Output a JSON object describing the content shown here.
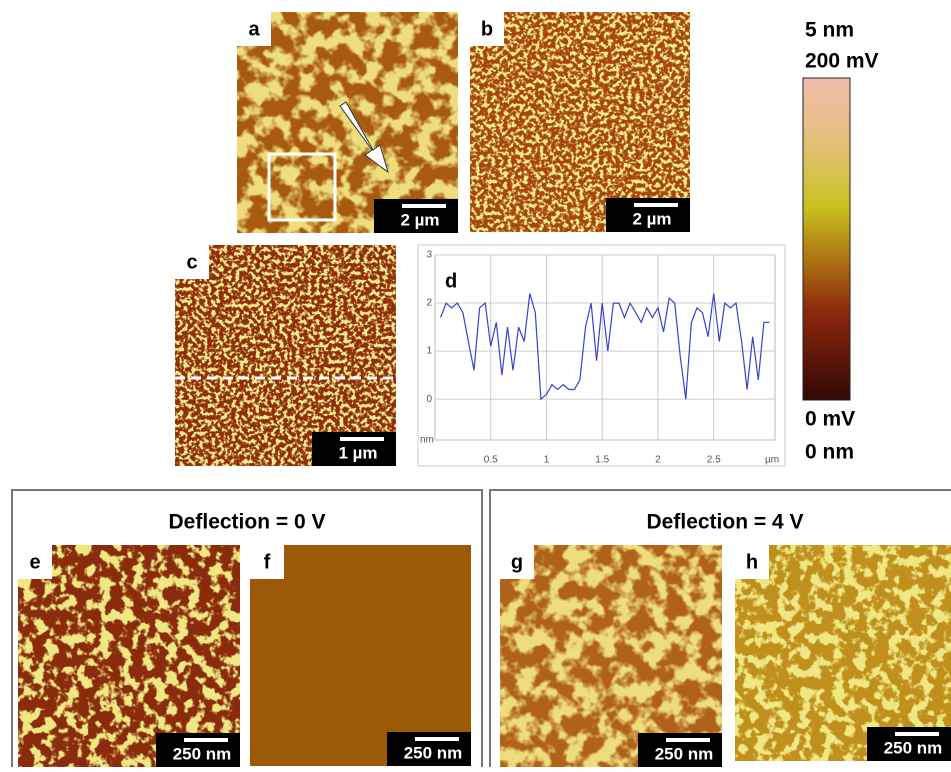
{
  "panels": [
    {
      "label": "a",
      "scale_bar": "2 µm"
    },
    {
      "label": "b",
      "scale_bar": "2 µm"
    },
    {
      "label": "c",
      "scale_bar": "1 µm"
    },
    {
      "label": "e",
      "scale_bar": "250 nm"
    },
    {
      "label": "f",
      "scale_bar": "250 nm"
    },
    {
      "label": "g",
      "scale_bar": "250 nm"
    },
    {
      "label": "h",
      "scale_bar": "250 nm"
    }
  ],
  "groups": [
    {
      "title": "Deflection = 0 V"
    },
    {
      "title": "Deflection = 4 V"
    }
  ],
  "colorbar": {
    "top_labels": [
      "5 nm",
      "200 mV"
    ],
    "bottom_labels": [
      "0 mV",
      "0 nm"
    ]
  },
  "chart_data": {
    "type": "line",
    "title": "d",
    "x_label": "µm",
    "y_label": "nm",
    "color": "#3344cc",
    "grid": true,
    "x": [
      0.05,
      0.1,
      0.15,
      0.2,
      0.25,
      0.3,
      0.35,
      0.4,
      0.45,
      0.5,
      0.55,
      0.6,
      0.65,
      0.7,
      0.75,
      0.8,
      0.85,
      0.9,
      0.95,
      1.0,
      1.05,
      1.1,
      1.15,
      1.2,
      1.25,
      1.3,
      1.35,
      1.4,
      1.45,
      1.5,
      1.55,
      1.6,
      1.65,
      1.7,
      1.75,
      1.8,
      1.85,
      1.9,
      1.95,
      2.0,
      2.05,
      2.1,
      2.15,
      2.2,
      2.25,
      2.3,
      2.35,
      2.4,
      2.45,
      2.5,
      2.55,
      2.6,
      2.65,
      2.7,
      2.75,
      2.8,
      2.85,
      2.9,
      2.95,
      3.0
    ],
    "values": [
      1.7,
      2.0,
      1.9,
      2.0,
      1.8,
      1.2,
      0.6,
      1.9,
      2.0,
      1.1,
      1.6,
      0.5,
      1.5,
      0.6,
      1.5,
      1.2,
      2.2,
      1.8,
      0.0,
      0.1,
      0.3,
      0.2,
      0.3,
      0.2,
      0.2,
      0.4,
      1.5,
      2.0,
      0.8,
      2.0,
      1.0,
      2.0,
      2.0,
      1.7,
      2.0,
      1.8,
      1.6,
      1.9,
      1.7,
      1.9,
      1.4,
      2.1,
      2.0,
      0.9,
      0.0,
      1.6,
      1.9,
      1.8,
      1.3,
      2.2,
      1.2,
      2.0,
      1.9,
      2.0,
      1.2,
      0.2,
      1.3,
      0.4,
      1.6,
      1.6
    ],
    "xlim": [
      0,
      3.05
    ],
    "ylim": [
      -0.85,
      3
    ],
    "xticks": [
      0.5,
      1,
      1.5,
      2,
      2.5
    ],
    "yticks": [
      0,
      1,
      2,
      3
    ]
  }
}
